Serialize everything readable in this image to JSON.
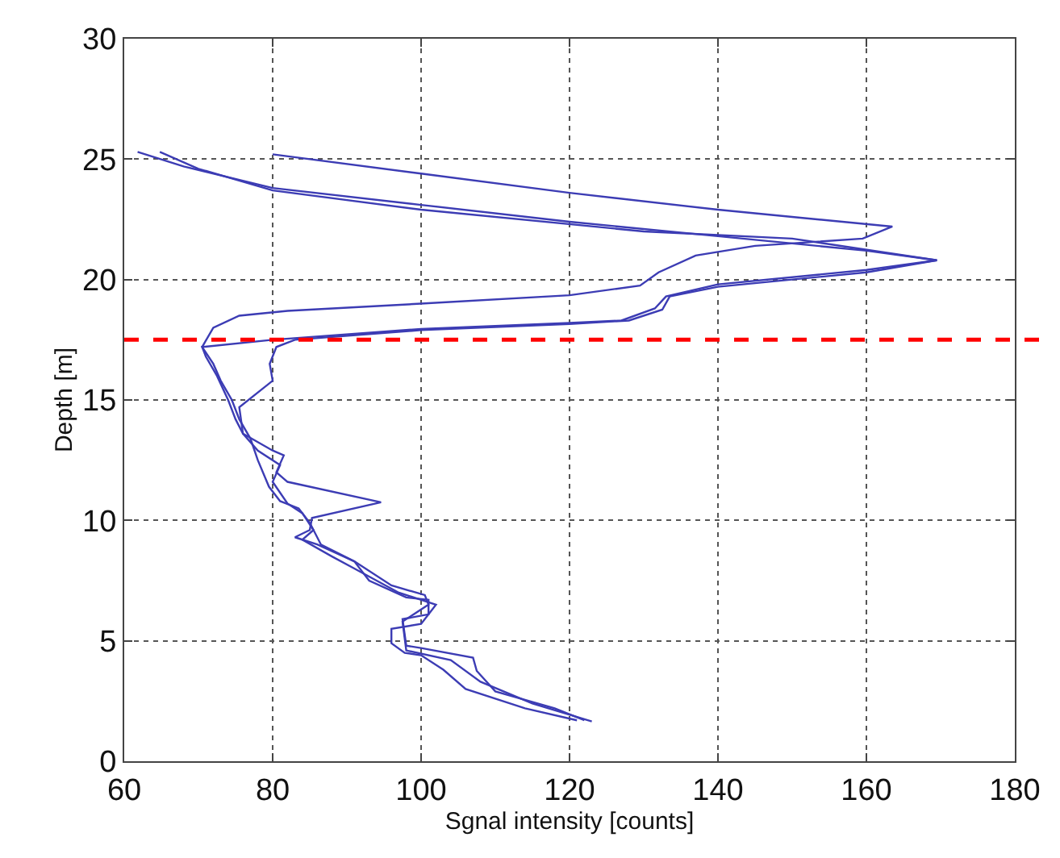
{
  "chart_data": {
    "type": "line",
    "xlabel": "Sgnal intensity [counts]",
    "ylabel": "Depth [m]",
    "xlim": [
      60,
      180
    ],
    "xticks": [
      60,
      80,
      100,
      120,
      140,
      160,
      180
    ],
    "ylim": [
      0,
      30
    ],
    "yticks": [
      0,
      5,
      10,
      15,
      20,
      25,
      30
    ],
    "grid": true,
    "line_style": "solid",
    "series": [
      {
        "color": "#3c3cb4",
        "x": [
          123,
          115,
          108,
          104,
          98,
          97.5,
          101,
          100.5,
          96,
          91,
          86.5,
          85,
          83.5,
          81,
          79.5,
          78,
          77,
          75.5,
          74.5,
          73,
          72,
          70.5,
          72,
          75.5,
          82,
          100,
          120,
          129.5,
          132,
          137,
          145,
          159.5,
          163.5,
          150,
          140,
          120,
          100,
          80
        ],
        "values": [
          1.65,
          2.4,
          3.3,
          4.2,
          4.6,
          5.8,
          6.5,
          6.9,
          7.3,
          8.3,
          9.0,
          9.9,
          10.5,
          10.8,
          11.4,
          12.5,
          13.4,
          14.2,
          15.0,
          15.8,
          16.5,
          17.2,
          18.0,
          18.5,
          18.7,
          19.0,
          19.35,
          19.75,
          20.3,
          21.0,
          21.4,
          21.7,
          22.2,
          22.6,
          22.9,
          23.6,
          24.4,
          25.2
        ]
      },
      {
        "color": "#3c3cb4",
        "x": [
          122,
          118,
          110,
          107.5,
          107,
          100,
          98,
          97.5,
          101,
          101,
          98,
          93,
          91,
          86,
          83,
          85,
          85.3,
          94.6,
          82,
          80.5,
          81.5,
          80,
          76,
          75.5,
          80,
          79.6,
          80.5,
          83,
          100,
          120,
          128,
          132.5,
          133.5,
          140,
          160,
          169.5,
          150,
          130,
          100,
          80,
          70,
          64.8
        ],
        "values": [
          1.7,
          2.2,
          2.9,
          3.75,
          4.3,
          4.7,
          4.8,
          5.9,
          6.1,
          6.7,
          6.8,
          7.5,
          8.3,
          9.0,
          9.3,
          9.6,
          10.1,
          10.75,
          11.6,
          12.0,
          12.7,
          12.9,
          13.6,
          14.7,
          15.8,
          16.5,
          17.2,
          17.5,
          17.9,
          18.15,
          18.3,
          18.75,
          19.3,
          19.7,
          20.3,
          20.8,
          21.7,
          22.0,
          22.9,
          23.7,
          24.6,
          25.3
        ]
      },
      {
        "color": "#3c3cb4",
        "x": [
          121,
          114,
          106,
          103,
          100,
          97.8,
          96,
          96,
          100,
          102,
          97,
          91,
          88,
          84,
          85.5,
          84,
          82,
          80,
          81,
          78,
          76,
          75,
          74,
          72.5,
          71,
          70.5,
          80,
          100,
          120,
          127,
          131.5,
          133,
          140,
          160,
          169.5,
          160,
          140,
          120,
          100,
          80,
          68,
          61.8
        ],
        "values": [
          1.7,
          2.2,
          3.0,
          3.8,
          4.4,
          4.5,
          4.9,
          5.5,
          5.7,
          6.5,
          7.0,
          8.0,
          8.5,
          9.2,
          9.6,
          10.3,
          10.7,
          11.6,
          12.3,
          12.9,
          13.6,
          14.2,
          15.0,
          16.0,
          16.8,
          17.2,
          17.5,
          17.95,
          18.2,
          18.3,
          18.8,
          19.3,
          19.8,
          20.4,
          20.8,
          21.2,
          21.8,
          22.4,
          23.1,
          23.8,
          24.7,
          25.3
        ]
      }
    ],
    "ref_lines": [
      {
        "axis": "y",
        "value": 17.5,
        "color": "#ff0000",
        "line_style": "dashed"
      }
    ]
  }
}
